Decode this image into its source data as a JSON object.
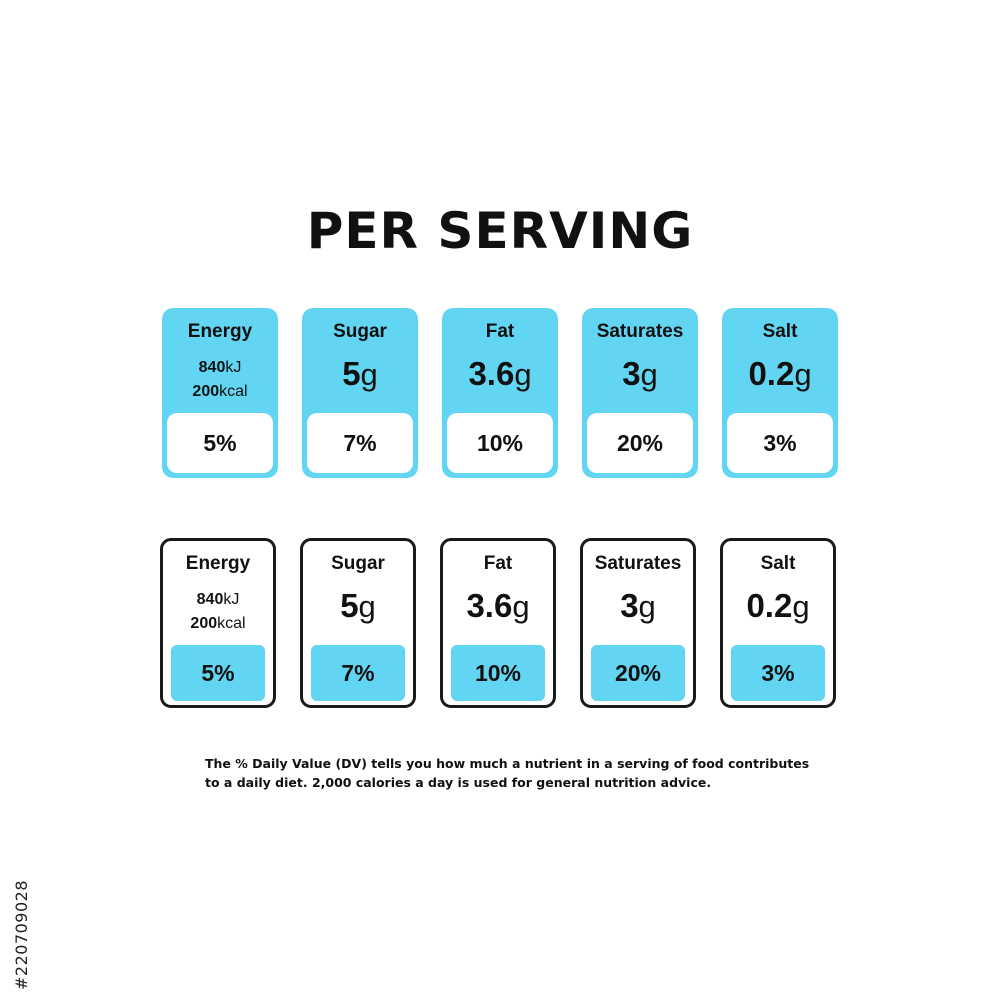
{
  "title": "PER SERVING",
  "row_filled": {
    "energy": {
      "label": "Energy",
      "kj_value": "840",
      "kj_unit": "kJ",
      "kcal_value": "200",
      "kcal_unit": "kcal",
      "dv": "5%"
    },
    "sugar": {
      "label": "Sugar",
      "value": "5",
      "unit": "g",
      "dv": "7%"
    },
    "fat": {
      "label": "Fat",
      "value": "3.6",
      "unit": "g",
      "dv": "10%"
    },
    "saturates": {
      "label": "Saturates",
      "value": "3",
      "unit": "g",
      "dv": "20%"
    },
    "salt": {
      "label": "Salt",
      "value": "0.2",
      "unit": "g",
      "dv": "3%"
    }
  },
  "row_outline": {
    "energy": {
      "label": "Energy",
      "kj_value": "840",
      "kj_unit": "kJ",
      "kcal_value": "200",
      "kcal_unit": "kcal",
      "dv": "5%"
    },
    "sugar": {
      "label": "Sugar",
      "value": "5",
      "unit": "g",
      "dv": "7%"
    },
    "fat": {
      "label": "Fat",
      "value": "3.6",
      "unit": "g",
      "dv": "10%"
    },
    "saturates": {
      "label": "Saturates",
      "value": "3",
      "unit": "g",
      "dv": "20%"
    },
    "salt": {
      "label": "Salt",
      "value": "0.2",
      "unit": "g",
      "dv": "3%"
    }
  },
  "footnote": "The % Daily Value (DV) tells you how much a nutrient in a serving of food contributes to a daily diet. 2,000 calories a day is used for general nutrition advice.",
  "stock_id": "#220709028",
  "colors": {
    "accent": "#62d5f2",
    "outline": "#1a1a1a",
    "text": "#111111",
    "background": "#ffffff"
  }
}
